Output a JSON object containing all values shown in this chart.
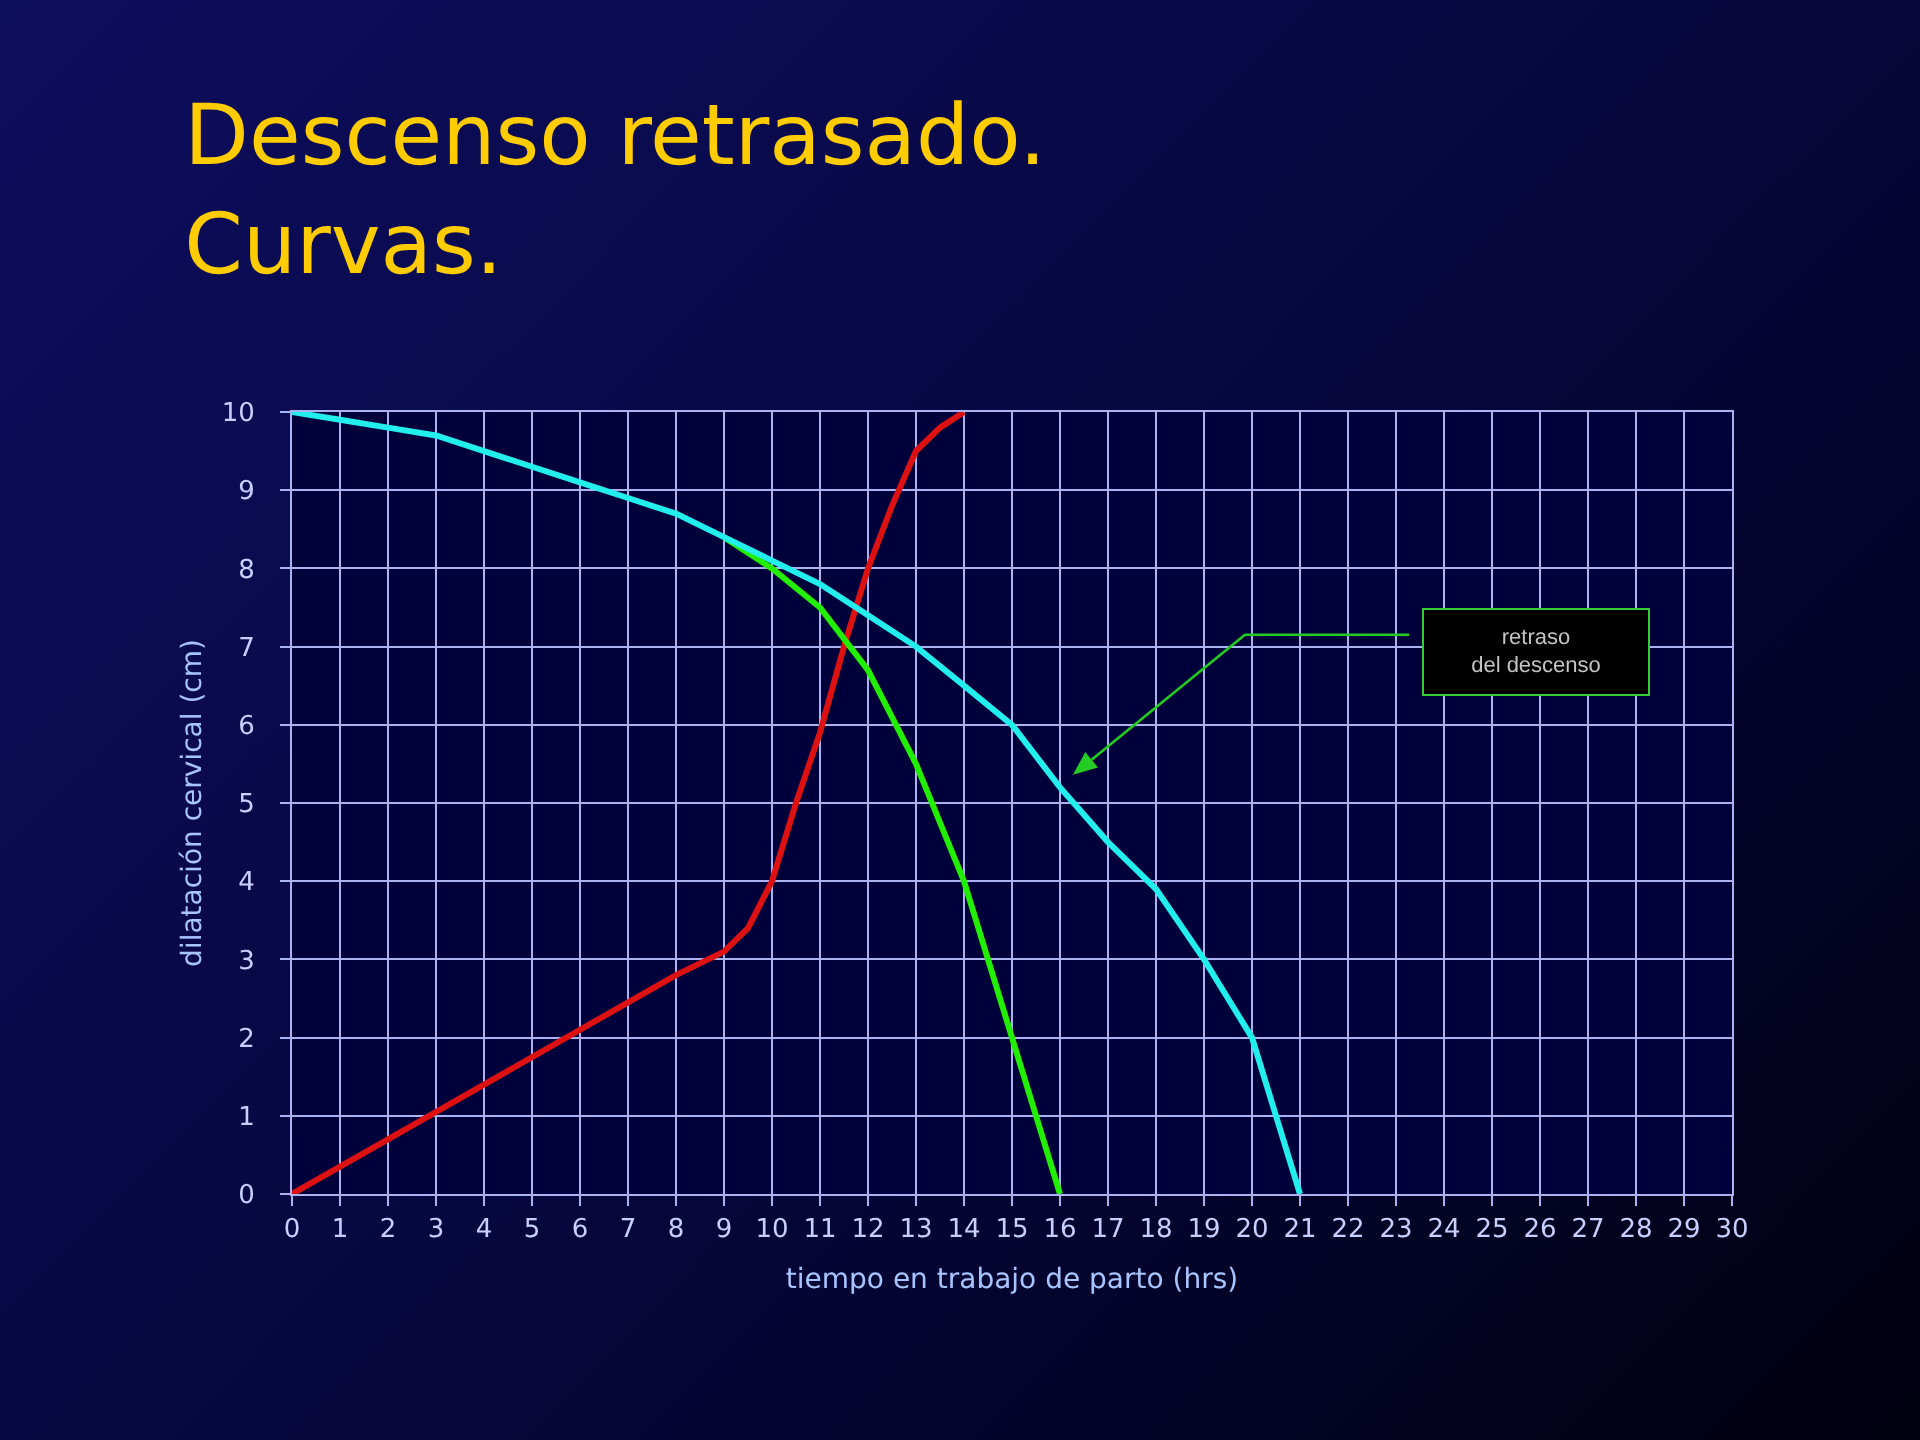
{
  "chart_data": {
    "type": "line",
    "title": "Descenso retrasado.\nCurvas.",
    "xlabel": "tiempo en trabajo de parto (hrs)",
    "ylabel": "dilatación cervical (cm)",
    "series": [
      {
        "color": "#dd1111",
        "x": [
          0,
          4,
          8,
          9,
          9.5,
          10,
          10.5,
          11,
          11.5,
          12,
          12.5,
          13,
          13.5,
          14
        ],
        "values": [
          0,
          1.4,
          2.8,
          3.1,
          3.4,
          4,
          5,
          5.9,
          7,
          8,
          8.8,
          9.5,
          9.8,
          10
        ]
      },
      {
        "color": "#22ee00",
        "x": [
          9,
          10,
          11,
          12,
          13,
          14,
          15,
          16
        ],
        "values": [
          8.4,
          8,
          7.5,
          6.7,
          5.5,
          4,
          2,
          0
        ]
      },
      {
        "color": "#22eeee",
        "x": [
          0,
          1,
          2,
          3,
          4,
          5,
          6,
          7,
          8,
          9,
          10,
          11,
          12,
          13,
          14,
          15,
          16,
          17,
          18,
          19,
          19.5,
          20,
          20.5,
          21
        ],
        "values": [
          10,
          9.9,
          9.8,
          9.7,
          9.5,
          9.3,
          9.1,
          8.9,
          8.7,
          8.4,
          8.1,
          7.8,
          7.4,
          7,
          6.5,
          6,
          5.2,
          4.5,
          3.9,
          3,
          2.5,
          2,
          1,
          0
        ]
      }
    ],
    "xlim": [
      0,
      30
    ],
    "ylim": [
      0,
      10
    ],
    "xticks": [
      0,
      1,
      2,
      3,
      4,
      5,
      6,
      7,
      8,
      9,
      10,
      11,
      12,
      13,
      14,
      15,
      16,
      17,
      18,
      19,
      20,
      21,
      22,
      23,
      24,
      25,
      26,
      27,
      28,
      29,
      30
    ],
    "yticks": [
      0,
      1,
      2,
      3,
      4,
      5,
      6,
      7,
      8,
      9,
      10
    ],
    "grid": true,
    "annotations": [
      "retraso\ndel descenso"
    ]
  }
}
